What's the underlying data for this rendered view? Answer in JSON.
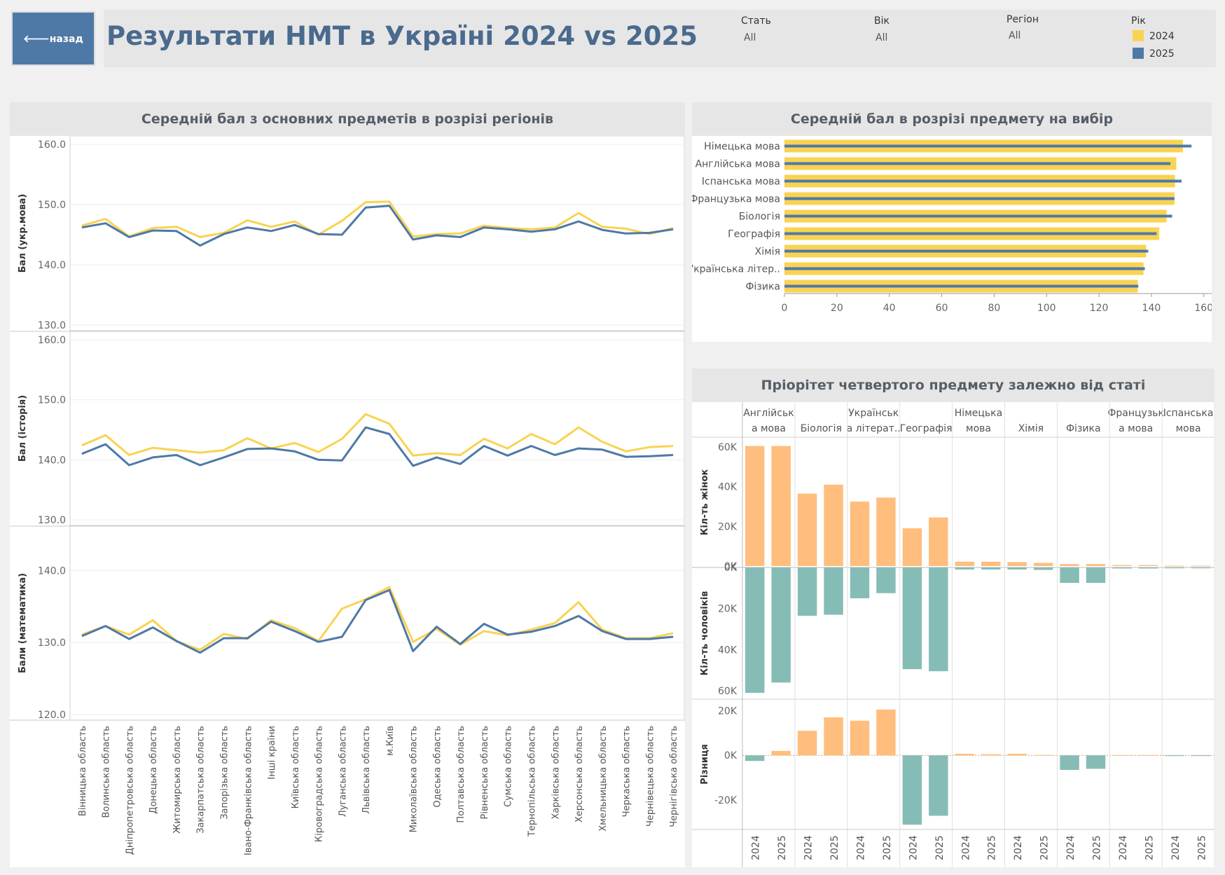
{
  "header": {
    "back_label": "🡐назад",
    "title": "Результати НМТ в Україні 2024 vs 2025",
    "filters": [
      {
        "label": "Стать",
        "value": "All"
      },
      {
        "label": "Вік",
        "value": "All"
      },
      {
        "label": "Регіон",
        "value": "All"
      }
    ],
    "legend_title": "Рік",
    "legend": [
      {
        "label": "2024",
        "color": "#f9d352"
      },
      {
        "label": "2025",
        "color": "#4e79a7"
      }
    ]
  },
  "colors": {
    "y2024": "#f9d352",
    "y2025": "#4e79a7",
    "female": "#ffbe7d",
    "male": "#86bcb6"
  },
  "panels": {
    "regions_title": "Середній бал з основних предметів в розрізі регіонів",
    "choice_title": "Середній бал в розрізі предмету на вибір",
    "gender_title": "Пріорітет четвертого предмету залежно від статі"
  },
  "chart_data": [
    {
      "type": "line",
      "title": "Середній бал з основних предметів в розрізі регіонів",
      "categories": [
        "Вінницька область",
        "Волинська область",
        "Дніпропетровська область",
        "Донецька область",
        "Житомирська область",
        "Закарпатська область",
        "Запорізька область",
        "Івано-Франківська область",
        "Інші країни",
        "Київська область",
        "Кіровоградська область",
        "Луганська область",
        "Львівська область",
        "м.Київ",
        "Миколаївська область",
        "Одеська область",
        "Полтавська область",
        "Рівненська область",
        "Сумська область",
        "Тернопільська область",
        "Харківська область",
        "Херсонська область",
        "Хмельницька область",
        "Черкаська область",
        "Чернівецька область",
        "Чернігівська область"
      ],
      "panels": [
        {
          "ylabel": "Бал (укр.мова)",
          "ylim": [
            130,
            160
          ],
          "ticks": [
            "160.0",
            "150.0",
            "140.0",
            "130.0"
          ],
          "tick_values": [
            160,
            150,
            140,
            130
          ],
          "series": [
            {
              "name": "2024",
              "values": [
                146.5,
                147.6,
                144.7,
                146.1,
                146.3,
                144.6,
                145.3,
                147.4,
                146.3,
                147.2,
                145.0,
                147.3,
                150.4,
                150.5,
                144.7,
                145.1,
                145.2,
                146.5,
                146.1,
                145.9,
                146.2,
                148.6,
                146.3,
                146.0,
                145.1,
                146.1
              ]
            },
            {
              "name": "2025",
              "values": [
                146.2,
                146.9,
                144.6,
                145.7,
                145.6,
                143.2,
                145.1,
                146.2,
                145.6,
                146.6,
                145.1,
                145.0,
                149.5,
                149.8,
                144.2,
                144.9,
                144.6,
                146.2,
                145.9,
                145.5,
                145.9,
                147.2,
                145.8,
                145.2,
                145.3,
                145.9
              ]
            }
          ]
        },
        {
          "ylabel": "Бал (історія)",
          "ylim": [
            130,
            160
          ],
          "ticks": [
            "160.0",
            "150.0",
            "140.0",
            "130.0"
          ],
          "tick_values": [
            160,
            150,
            140,
            130
          ],
          "series": [
            {
              "name": "2024",
              "values": [
                142.4,
                144.1,
                140.8,
                142.0,
                141.6,
                141.2,
                141.6,
                143.6,
                141.9,
                142.8,
                141.3,
                143.5,
                147.6,
                146.0,
                140.7,
                141.1,
                140.8,
                143.5,
                141.9,
                144.3,
                142.6,
                145.4,
                143.0,
                141.4,
                142.1,
                142.3
              ]
            },
            {
              "name": "2025",
              "values": [
                141.0,
                142.6,
                139.1,
                140.4,
                140.8,
                139.1,
                140.4,
                141.8,
                141.9,
                141.4,
                140.0,
                139.9,
                145.4,
                144.3,
                139.0,
                140.4,
                139.3,
                142.3,
                140.7,
                142.3,
                140.8,
                141.9,
                141.7,
                140.5,
                140.6,
                140.8
              ]
            }
          ]
        },
        {
          "ylabel": "Бали (математика)",
          "ylim": [
            120,
            145
          ],
          "ticks": [
            "140.0",
            "130.0",
            "120.0"
          ],
          "tick_values": [
            140,
            130,
            120
          ],
          "series": [
            {
              "name": "2024",
              "values": [
                131.1,
                132.3,
                131.1,
                133.1,
                130.2,
                129.0,
                131.2,
                130.5,
                133.1,
                132.0,
                130.2,
                134.7,
                136.0,
                137.7,
                130.1,
                131.9,
                129.7,
                131.6,
                131.0,
                131.8,
                132.7,
                135.6,
                131.8,
                130.6,
                130.6,
                131.3
              ]
            },
            {
              "name": "2025",
              "values": [
                130.9,
                132.3,
                130.5,
                132.1,
                130.2,
                128.6,
                130.6,
                130.6,
                132.9,
                131.6,
                130.1,
                130.8,
                135.9,
                137.3,
                128.8,
                132.2,
                129.8,
                132.6,
                131.1,
                131.5,
                132.3,
                133.7,
                131.6,
                130.5,
                130.5,
                130.8
              ]
            }
          ]
        }
      ]
    },
    {
      "type": "bar",
      "orientation": "horizontal",
      "title": "Середній бал в розрізі предмету на вибір",
      "categories": [
        "Німецька мова",
        "Англійська мова",
        "Іспанська мова",
        "Французька мова",
        "Біологія",
        "Географія",
        "Хімія",
        "Українська літер..",
        "Фізика"
      ],
      "xlim": [
        0,
        163
      ],
      "ticks": [
        "0",
        "20",
        "40",
        "60",
        "80",
        "100",
        "120",
        "140",
        "160"
      ],
      "tick_values": [
        0,
        20,
        40,
        60,
        80,
        100,
        120,
        140,
        160
      ],
      "series": [
        {
          "name": "2024",
          "values": [
            152.0,
            149.5,
            149.0,
            148.8,
            145.8,
            143.0,
            138.0,
            137.0,
            134.8
          ]
        },
        {
          "name": "2025",
          "values": [
            155.3,
            147.3,
            151.5,
            148.8,
            147.9,
            142.0,
            138.8,
            137.5,
            135.0
          ]
        }
      ]
    },
    {
      "type": "bar",
      "title": "Пріорітет четвертого предмету залежно від статі",
      "categories": [
        "Англійська мова",
        "Біологія",
        "Українська літерат..",
        "Географія",
        "Німецька мова",
        "Хімія",
        "Фізика",
        "Французька мова",
        "Іспанська мова"
      ],
      "category_labels": [
        [
          "Англійськ",
          "а мова"
        ],
        [
          "Біологія"
        ],
        [
          "Українськ",
          "а літерат.."
        ],
        [
          "Географія"
        ],
        [
          "Німецька",
          "мова"
        ],
        [
          "Хімія"
        ],
        [
          "Фізика"
        ],
        [
          "Французьк",
          "а мова"
        ],
        [
          "Іспанська",
          "мова"
        ]
      ],
      "years": [
        "2024",
        "2025"
      ],
      "panels": [
        {
          "ylabel": "Кіл-ть жінок",
          "ylim": [
            0,
            60000
          ],
          "ticks": [
            "60K",
            "40K",
            "20K",
            "0K"
          ],
          "tick_values": [
            60000,
            40000,
            20000,
            0
          ],
          "values": [
            [
              60500,
              60500
            ],
            [
              36500,
              41000
            ],
            [
              32500,
              34500
            ],
            [
              19000,
              24500
            ],
            [
              2200,
              2200
            ],
            [
              2000,
              1600
            ],
            [
              1000,
              1000
            ],
            [
              500,
              500
            ],
            [
              200,
              200
            ]
          ]
        },
        {
          "ylabel": "Кіл-ть чоловіків",
          "ylim": [
            0,
            60000
          ],
          "ticks": [
            "0K",
            "20K",
            "40K",
            "60K"
          ],
          "tick_values": [
            0,
            20000,
            40000,
            60000
          ],
          "values": [
            [
              61000,
              56000
            ],
            [
              23500,
              23000
            ],
            [
              15000,
              12500
            ],
            [
              49500,
              50500
            ],
            [
              1000,
              1000
            ],
            [
              1000,
              1200
            ],
            [
              7500,
              7500
            ],
            [
              500,
              500
            ],
            [
              400,
              400
            ]
          ]
        },
        {
          "ylabel": "Різниця",
          "ylim": [
            -30000,
            22000
          ],
          "ticks": [
            "20K",
            "0K",
            "-20K"
          ],
          "tick_values": [
            20000,
            0,
            -20000
          ],
          "values": [
            [
              -2500,
              2000
            ],
            [
              11000,
              17000
            ],
            [
              15500,
              20500
            ],
            [
              -31000,
              -27000
            ],
            [
              700,
              500
            ],
            [
              700,
              200
            ],
            [
              -6500,
              -6000
            ],
            [
              100,
              100
            ],
            [
              -100,
              -100
            ]
          ]
        }
      ]
    }
  ]
}
